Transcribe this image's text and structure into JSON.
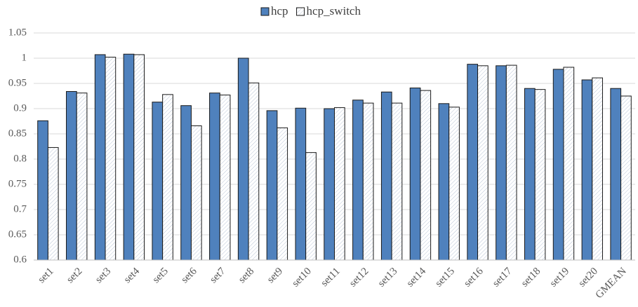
{
  "chart_data": {
    "type": "bar",
    "categories": [
      "set1",
      "set2",
      "set3",
      "set4",
      "set5",
      "set6",
      "set7",
      "set8",
      "set9",
      "set10",
      "set11",
      "set12",
      "set13",
      "set14",
      "set15",
      "set16",
      "set17",
      "set18",
      "set19",
      "set20",
      "GMEAN"
    ],
    "series": [
      {
        "name": "hcp",
        "color": "#4f81bd",
        "values": [
          0.876,
          0.934,
          1.007,
          1.008,
          0.913,
          0.906,
          0.931,
          1.0,
          0.896,
          0.901,
          0.9,
          0.917,
          0.933,
          0.941,
          0.91,
          0.988,
          0.985,
          0.94,
          0.978,
          0.957,
          0.94
        ]
      },
      {
        "name": "hcp_switch",
        "color": "#ffffff",
        "values": [
          0.823,
          0.931,
          1.002,
          1.007,
          0.928,
          0.866,
          0.927,
          0.951,
          0.862,
          0.813,
          0.902,
          0.911,
          0.911,
          0.936,
          0.903,
          0.985,
          0.986,
          0.938,
          0.982,
          0.961,
          0.925
        ]
      }
    ],
    "ylim": [
      0.6,
      1.05
    ],
    "yticks": [
      0.6,
      0.65,
      0.7,
      0.75,
      0.8,
      0.85,
      0.9,
      0.95,
      1,
      1.05
    ],
    "grid": true,
    "legend": "top"
  }
}
